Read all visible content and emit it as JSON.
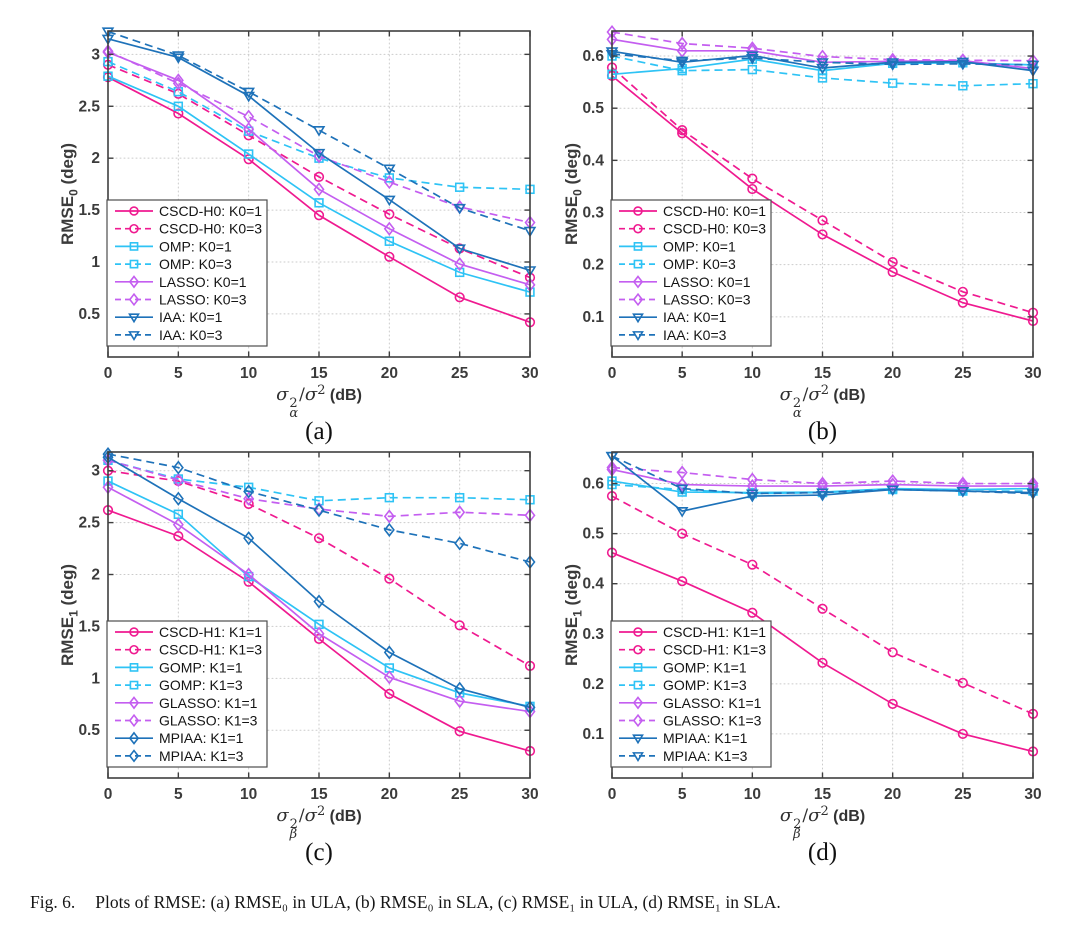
{
  "caption": {
    "label": "Fig. 6.",
    "text": "Plots of RMSE: (a) RMSE₀ in ULA, (b) RMSE₀ in SLA, (c) RMSE₁ in ULA, (d) RMSE₁ in SLA."
  },
  "style": {
    "axis_color": "#3f3f3f",
    "grid_color": "#cbcbcb",
    "tick_label_color": "#3b3b3b",
    "legend_text_color": "#141414",
    "legend_border_color": "#4d4d4d",
    "background": "#ffffff"
  },
  "colors": {
    "pink": "#ef1a90",
    "cyan": "#2ec3f5",
    "violet": "#c45ef0",
    "blue": "#1e72b9"
  },
  "chart_data": [
    {
      "type": "line",
      "subplot_label": "(a)",
      "ylabel": {
        "base": "RMSE",
        "sub": "0",
        "unit": " (deg)"
      },
      "xlabel": {
        "num": "σ",
        "num_sup": "2",
        "num_sub": "α",
        "slash": "/",
        "den": "σ",
        "den_sup": "2",
        "unit": " (dB)"
      },
      "x": [
        0,
        5,
        10,
        15,
        20,
        25,
        30
      ],
      "xlim": [
        0,
        30
      ],
      "ylim": [
        0.085,
        3.225
      ],
      "xticks": [
        0,
        5,
        10,
        15,
        20,
        25,
        30
      ],
      "xtick_labels": [
        "0",
        "5",
        "10",
        "15",
        "20",
        "25",
        "30"
      ],
      "yticks": [
        0.5,
        1,
        1.5,
        2,
        2.5,
        3
      ],
      "ytick_labels": [
        "0.5",
        "1",
        "1.5",
        "2",
        "2.5",
        "3"
      ],
      "grid": true,
      "legend_position": "southwest",
      "series": [
        {
          "name": "CSCD-H0: K0=1",
          "color": "pink",
          "dash": "solid",
          "marker": "circle",
          "values": [
            2.78,
            2.43,
            1.99,
            1.45,
            1.05,
            0.66,
            0.42
          ]
        },
        {
          "name": "CSCD-H0: K0=3",
          "color": "pink",
          "dash": "dashed",
          "marker": "circle",
          "values": [
            2.9,
            2.62,
            2.22,
            1.82,
            1.46,
            1.13,
            0.85
          ]
        },
        {
          "name": "OMP: K0=1",
          "color": "cyan",
          "dash": "solid",
          "marker": "square",
          "values": [
            2.79,
            2.5,
            2.04,
            1.57,
            1.2,
            0.9,
            0.71
          ]
        },
        {
          "name": "OMP: K0=3",
          "color": "cyan",
          "dash": "dashed",
          "marker": "square",
          "values": [
            2.93,
            2.64,
            2.26,
            2.0,
            1.81,
            1.72,
            1.7
          ]
        },
        {
          "name": "LASSO: K0=1",
          "color": "violet",
          "dash": "solid",
          "marker": "diamond",
          "values": [
            3.02,
            2.75,
            2.28,
            1.7,
            1.32,
            0.98,
            0.78
          ]
        },
        {
          "name": "LASSO: K0=3",
          "color": "violet",
          "dash": "dashed",
          "marker": "diamond",
          "values": [
            3.03,
            2.72,
            2.4,
            2.02,
            1.77,
            1.53,
            1.38
          ]
        },
        {
          "name": "IAA: K0=1",
          "color": "blue",
          "dash": "solid",
          "marker": "triangle",
          "values": [
            3.15,
            2.97,
            2.6,
            2.05,
            1.6,
            1.13,
            0.92
          ]
        },
        {
          "name": "IAA: K0=3",
          "color": "blue",
          "dash": "dashed",
          "marker": "triangle",
          "values": [
            3.22,
            2.99,
            2.64,
            2.27,
            1.9,
            1.52,
            1.3
          ]
        }
      ]
    },
    {
      "type": "line",
      "subplot_label": "(b)",
      "ylabel": {
        "base": "RMSE",
        "sub": "0",
        "unit": " (deg)"
      },
      "xlabel": {
        "num": "σ",
        "num_sup": "2",
        "num_sub": "α",
        "slash": "/",
        "den": "σ",
        "den_sup": "2",
        "unit": " (dB)"
      },
      "x": [
        0,
        5,
        10,
        15,
        20,
        25,
        30
      ],
      "xlim": [
        0,
        30
      ],
      "ylim": [
        0.023,
        0.648
      ],
      "xticks": [
        0,
        5,
        10,
        15,
        20,
        25,
        30
      ],
      "xtick_labels": [
        "0",
        "5",
        "10",
        "15",
        "20",
        "25",
        "30"
      ],
      "yticks": [
        0.1,
        0.2,
        0.3,
        0.4,
        0.5,
        0.6
      ],
      "ytick_labels": [
        "0.1",
        "0.2",
        "0.3",
        "0.4",
        "0.5",
        "0.6"
      ],
      "grid": true,
      "legend_position": "southwest",
      "series": [
        {
          "name": "CSCD-H0: K0=1",
          "color": "pink",
          "dash": "solid",
          "marker": "circle",
          "values": [
            0.562,
            0.452,
            0.345,
            0.258,
            0.186,
            0.127,
            0.092
          ]
        },
        {
          "name": "CSCD-H0: K0=3",
          "color": "pink",
          "dash": "dashed",
          "marker": "circle",
          "values": [
            0.578,
            0.458,
            0.365,
            0.285,
            0.205,
            0.148,
            0.108
          ]
        },
        {
          "name": "OMP: K0=1",
          "color": "cyan",
          "dash": "solid",
          "marker": "square",
          "values": [
            0.565,
            0.576,
            0.594,
            0.572,
            0.586,
            0.587,
            0.583
          ]
        },
        {
          "name": "OMP: K0=3",
          "color": "cyan",
          "dash": "dashed",
          "marker": "square",
          "values": [
            0.6,
            0.572,
            0.574,
            0.558,
            0.548,
            0.543,
            0.547
          ]
        },
        {
          "name": "LASSO: K0=1",
          "color": "violet",
          "dash": "solid",
          "marker": "diamond",
          "values": [
            0.632,
            0.61,
            0.61,
            0.588,
            0.59,
            0.591,
            0.576
          ]
        },
        {
          "name": "LASSO: K0=3",
          "color": "violet",
          "dash": "dashed",
          "marker": "diamond",
          "values": [
            0.646,
            0.624,
            0.615,
            0.599,
            0.593,
            0.592,
            0.591
          ]
        },
        {
          "name": "IAA: K0=1",
          "color": "blue",
          "dash": "solid",
          "marker": "triangle",
          "values": [
            0.609,
            0.588,
            0.601,
            0.577,
            0.588,
            0.589,
            0.572
          ]
        },
        {
          "name": "IAA: K0=3",
          "color": "blue",
          "dash": "dashed",
          "marker": "triangle",
          "values": [
            0.604,
            0.591,
            0.596,
            0.588,
            0.584,
            0.585,
            0.583
          ]
        }
      ]
    },
    {
      "type": "line",
      "subplot_label": "(c)",
      "ylabel": {
        "base": "RMSE",
        "sub": "1",
        "unit": " (deg)"
      },
      "xlabel": {
        "num": "σ",
        "num_sup": "2",
        "num_sub": "β",
        "slash": "/",
        "den": "σ",
        "den_sup": "2",
        "unit": " (dB)"
      },
      "x": [
        0,
        5,
        10,
        15,
        20,
        25,
        30
      ],
      "xlim": [
        0,
        30
      ],
      "ylim": [
        0.04,
        3.18
      ],
      "xticks": [
        0,
        5,
        10,
        15,
        20,
        25,
        30
      ],
      "xtick_labels": [
        "0",
        "5",
        "10",
        "15",
        "20",
        "25",
        "30"
      ],
      "yticks": [
        0.5,
        1,
        1.5,
        2,
        2.5,
        3
      ],
      "ytick_labels": [
        "0.5",
        "1",
        "1.5",
        "2",
        "2.5",
        "3"
      ],
      "grid": true,
      "legend_position": "southwest",
      "series": [
        {
          "name": "CSCD-H1: K1=1",
          "color": "pink",
          "dash": "solid",
          "marker": "circle",
          "values": [
            2.62,
            2.37,
            1.93,
            1.38,
            0.85,
            0.49,
            0.3
          ]
        },
        {
          "name": "CSCD-H1: K1=3",
          "color": "pink",
          "dash": "dashed",
          "marker": "circle",
          "values": [
            3.0,
            2.9,
            2.68,
            2.35,
            1.96,
            1.51,
            1.12
          ]
        },
        {
          "name": "GOMP: K1=1",
          "color": "cyan",
          "dash": "solid",
          "marker": "square",
          "values": [
            2.9,
            2.58,
            1.98,
            1.52,
            1.1,
            0.86,
            0.73
          ]
        },
        {
          "name": "GOMP: K1=3",
          "color": "cyan",
          "dash": "dashed",
          "marker": "square",
          "values": [
            3.1,
            2.92,
            2.84,
            2.71,
            2.74,
            2.74,
            2.72
          ]
        },
        {
          "name": "GLASSO: K1=1",
          "color": "violet",
          "dash": "solid",
          "marker": "diamond",
          "values": [
            2.84,
            2.48,
            2.0,
            1.43,
            1.01,
            0.78,
            0.68
          ]
        },
        {
          "name": "GLASSO: K1=3",
          "color": "violet",
          "dash": "dashed",
          "marker": "diamond",
          "values": [
            3.1,
            2.91,
            2.73,
            2.63,
            2.56,
            2.6,
            2.57
          ]
        },
        {
          "name": "MPIAA: K1=1",
          "color": "blue",
          "dash": "solid",
          "marker": "diamond",
          "values": [
            3.13,
            2.73,
            2.35,
            1.74,
            1.25,
            0.9,
            0.72
          ]
        },
        {
          "name": "MPIAA: K1=3",
          "color": "blue",
          "dash": "dashed",
          "marker": "diamond",
          "values": [
            3.16,
            3.03,
            2.8,
            2.62,
            2.43,
            2.3,
            2.12
          ]
        }
      ]
    },
    {
      "type": "line",
      "subplot_label": "(d)",
      "ylabel": {
        "base": "RMSE",
        "sub": "1",
        "unit": " (deg)"
      },
      "xlabel": {
        "num": "σ",
        "num_sup": "2",
        "num_sub": "β",
        "slash": "/",
        "den": "σ",
        "den_sup": "2",
        "unit": " (dB)"
      },
      "x": [
        0,
        5,
        10,
        15,
        20,
        25,
        30
      ],
      "xlim": [
        0,
        30
      ],
      "ylim": [
        0.012,
        0.663
      ],
      "xticks": [
        0,
        5,
        10,
        15,
        20,
        25,
        30
      ],
      "xtick_labels": [
        "0",
        "5",
        "10",
        "15",
        "20",
        "25",
        "30"
      ],
      "yticks": [
        0.1,
        0.2,
        0.3,
        0.4,
        0.5,
        0.6
      ],
      "ytick_labels": [
        "0.1",
        "0.2",
        "0.3",
        "0.4",
        "0.5",
        "0.6"
      ],
      "grid": true,
      "legend_position": "southwest",
      "series": [
        {
          "name": "CSCD-H1: K1=1",
          "color": "pink",
          "dash": "solid",
          "marker": "circle",
          "values": [
            0.462,
            0.405,
            0.342,
            0.242,
            0.16,
            0.1,
            0.065
          ]
        },
        {
          "name": "CSCD-H1: K1=3",
          "color": "pink",
          "dash": "dashed",
          "marker": "circle",
          "values": [
            0.575,
            0.5,
            0.438,
            0.35,
            0.263,
            0.202,
            0.14
          ]
        },
        {
          "name": "GOMP: K1=1",
          "color": "cyan",
          "dash": "solid",
          "marker": "square",
          "values": [
            0.605,
            0.583,
            0.582,
            0.583,
            0.59,
            0.588,
            0.59
          ]
        },
        {
          "name": "GOMP: K1=3",
          "color": "cyan",
          "dash": "dashed",
          "marker": "square",
          "values": [
            0.598,
            0.588,
            0.58,
            0.582,
            0.588,
            0.585,
            0.585
          ]
        },
        {
          "name": "GLASSO: K1=1",
          "color": "violet",
          "dash": "solid",
          "marker": "diamond",
          "values": [
            0.628,
            0.598,
            0.595,
            0.595,
            0.598,
            0.595,
            0.595
          ]
        },
        {
          "name": "GLASSO: K1=3",
          "color": "violet",
          "dash": "dashed",
          "marker": "diamond",
          "values": [
            0.632,
            0.622,
            0.608,
            0.6,
            0.605,
            0.6,
            0.6
          ]
        },
        {
          "name": "MPIAA: K1=1",
          "color": "blue",
          "dash": "solid",
          "marker": "triangle",
          "values": [
            0.655,
            0.545,
            0.575,
            0.577,
            0.588,
            0.585,
            0.582
          ]
        },
        {
          "name": "MPIAA: K1=3",
          "color": "blue",
          "dash": "dashed",
          "marker": "triangle",
          "values": [
            0.655,
            0.59,
            0.58,
            0.582,
            0.588,
            0.585,
            0.58
          ]
        }
      ]
    }
  ]
}
